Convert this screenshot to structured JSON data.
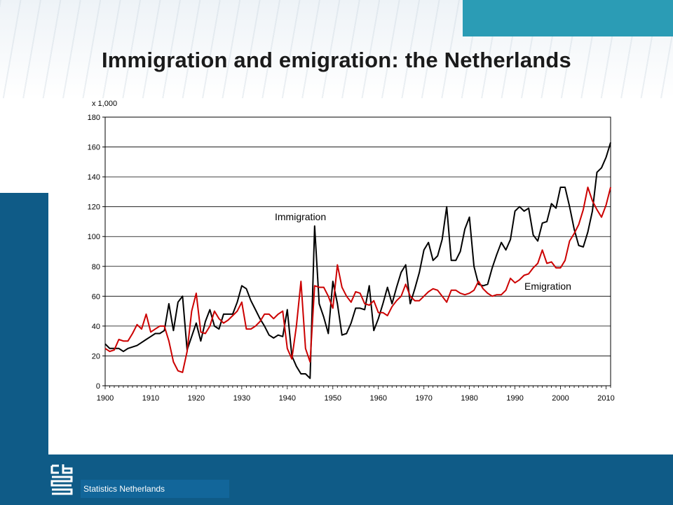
{
  "slide": {
    "title": "Immigration and emigration: the Netherlands",
    "footer": "Statistics Netherlands",
    "logo_icon": "cbs-logo-icon"
  },
  "colors": {
    "primary_blue": "#0f5b87",
    "accent_teal": "#2b9cb5",
    "immigration": "#000000",
    "emigration": "#cc0000"
  },
  "chart_data": {
    "type": "line",
    "unit_label": "x 1,000",
    "xlim": [
      1900,
      2011
    ],
    "ylim": [
      0,
      180
    ],
    "yticks": [
      0,
      20,
      40,
      60,
      80,
      100,
      120,
      140,
      160,
      180
    ],
    "xticks": [
      1900,
      1910,
      1920,
      1930,
      1940,
      1950,
      1960,
      1970,
      1980,
      1990,
      2000,
      2010
    ],
    "grid": true,
    "annotations": [
      {
        "text": "Immigration",
        "series": "Immigration"
      },
      {
        "text": "Emigration",
        "series": "Emigration"
      }
    ],
    "series": [
      {
        "name": "Immigration",
        "color": "#000000",
        "x": [
          1900,
          1901,
          1902,
          1903,
          1904,
          1905,
          1906,
          1907,
          1908,
          1909,
          1910,
          1911,
          1912,
          1913,
          1914,
          1915,
          1916,
          1917,
          1918,
          1919,
          1920,
          1921,
          1922,
          1923,
          1924,
          1925,
          1926,
          1927,
          1928,
          1929,
          1930,
          1931,
          1932,
          1933,
          1934,
          1935,
          1936,
          1937,
          1938,
          1939,
          1940,
          1941,
          1942,
          1943,
          1944,
          1945,
          1946,
          1947,
          1948,
          1949,
          1950,
          1951,
          1952,
          1953,
          1954,
          1955,
          1956,
          1957,
          1958,
          1959,
          1960,
          1961,
          1962,
          1963,
          1964,
          1965,
          1966,
          1967,
          1968,
          1969,
          1970,
          1971,
          1972,
          1973,
          1974,
          1975,
          1976,
          1977,
          1978,
          1979,
          1980,
          1981,
          1982,
          1983,
          1984,
          1985,
          1986,
          1987,
          1988,
          1989,
          1990,
          1991,
          1992,
          1993,
          1994,
          1995,
          1996,
          1997,
          1998,
          1999,
          2000,
          2001,
          2002,
          2003,
          2004,
          2005,
          2006,
          2007,
          2008,
          2009,
          2010,
          2011
        ],
        "values": [
          28,
          25,
          25,
          25,
          23,
          25,
          26,
          27,
          29,
          31,
          33,
          35,
          35,
          37,
          55,
          37,
          56,
          60,
          24,
          33,
          42,
          30,
          43,
          51,
          40,
          38,
          48,
          48,
          48,
          56,
          67,
          65,
          57,
          51,
          45,
          40,
          34,
          32,
          34,
          33,
          51,
          20,
          13,
          8,
          8,
          5,
          107,
          55,
          46,
          35,
          70,
          55,
          34,
          35,
          42,
          52,
          52,
          51,
          67,
          37,
          45,
          55,
          66,
          55,
          66,
          76,
          81,
          55,
          65,
          76,
          91,
          96,
          84,
          87,
          98,
          120,
          84,
          84,
          90,
          105,
          113,
          80,
          68,
          67,
          68,
          79,
          88,
          96,
          91,
          98,
          117,
          120,
          117,
          119,
          101,
          97,
          109,
          110,
          122,
          119,
          133,
          133,
          120,
          105,
          94,
          93,
          103,
          117,
          143,
          146,
          153,
          163
        ]
      },
      {
        "name": "Emigration",
        "color": "#cc0000",
        "x": [
          1900,
          1901,
          1902,
          1903,
          1904,
          1905,
          1906,
          1907,
          1908,
          1909,
          1910,
          1911,
          1912,
          1913,
          1914,
          1915,
          1916,
          1917,
          1918,
          1919,
          1920,
          1921,
          1922,
          1923,
          1924,
          1925,
          1926,
          1927,
          1928,
          1929,
          1930,
          1931,
          1932,
          1933,
          1934,
          1935,
          1936,
          1937,
          1938,
          1939,
          1940,
          1941,
          1942,
          1943,
          1944,
          1945,
          1946,
          1947,
          1948,
          1949,
          1950,
          1951,
          1952,
          1953,
          1954,
          1955,
          1956,
          1957,
          1958,
          1959,
          1960,
          1961,
          1962,
          1963,
          1964,
          1965,
          1966,
          1967,
          1968,
          1969,
          1970,
          1971,
          1972,
          1973,
          1974,
          1975,
          1976,
          1977,
          1978,
          1979,
          1980,
          1981,
          1982,
          1983,
          1984,
          1985,
          1986,
          1987,
          1988,
          1989,
          1990,
          1991,
          1992,
          1993,
          1994,
          1995,
          1996,
          1997,
          1998,
          1999,
          2000,
          2001,
          2002,
          2003,
          2004,
          2005,
          2006,
          2007,
          2008,
          2009,
          2010,
          2011
        ],
        "values": [
          25,
          23,
          24,
          31,
          30,
          30,
          35,
          41,
          38,
          48,
          36,
          38,
          40,
          40,
          30,
          16,
          10,
          9,
          23,
          50,
          62,
          36,
          35,
          40,
          50,
          45,
          42,
          44,
          47,
          50,
          56,
          38,
          38,
          40,
          43,
          48,
          48,
          45,
          48,
          50,
          25,
          18,
          40,
          70,
          25,
          16,
          67,
          66,
          66,
          60,
          52,
          81,
          66,
          60,
          56,
          63,
          62,
          55,
          54,
          57,
          49,
          49,
          47,
          53,
          57,
          60,
          68,
          60,
          57,
          57,
          60,
          63,
          65,
          64,
          60,
          56,
          64,
          64,
          62,
          61,
          62,
          64,
          70,
          65,
          62,
          60,
          61,
          61,
          64,
          72,
          69,
          71,
          74,
          75,
          79,
          82,
          91,
          82,
          83,
          79,
          79,
          84,
          97,
          102,
          108,
          118,
          133,
          124,
          118,
          113,
          121,
          133
        ]
      }
    ]
  }
}
